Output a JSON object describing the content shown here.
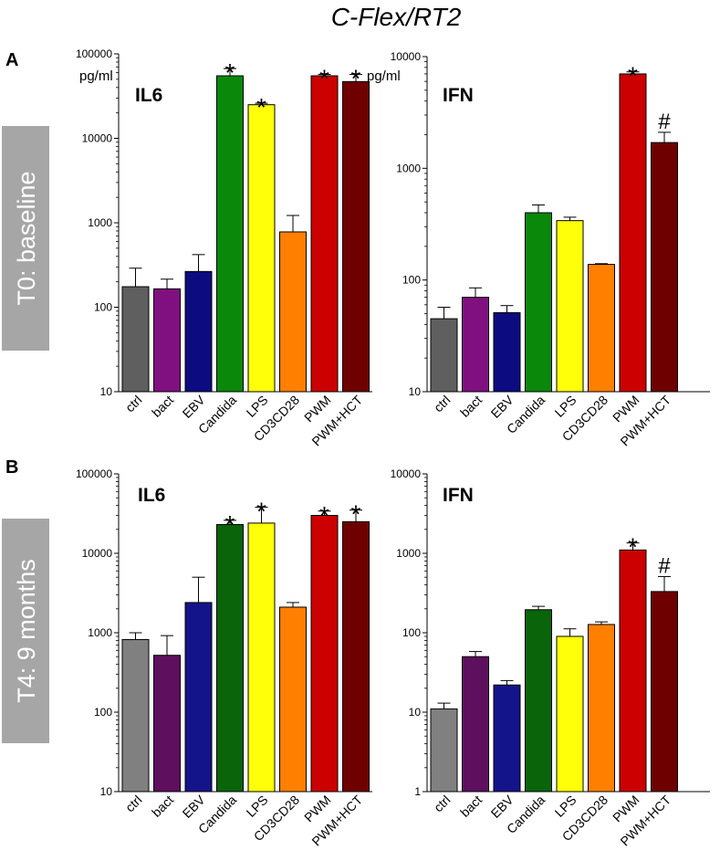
{
  "figure_title": "C-Flex/RT2",
  "panels": [
    {
      "letter": "A",
      "row_label": "T0: baseline"
    },
    {
      "letter": "B",
      "row_label": "T4: 9 months"
    }
  ],
  "chart_data": [
    {
      "type": "bar",
      "panel": "A",
      "title": "IL6",
      "ylabel": "pg/ml",
      "yscale": "log",
      "ylim": [
        10,
        100000
      ],
      "yticks": [
        "10",
        "100",
        "1000",
        "10000",
        "100000"
      ],
      "categories": [
        "ctrl",
        "bact",
        "EBV",
        "Candida",
        "LPS",
        "CD3CD28",
        "PWM",
        "PWM+HCT"
      ],
      "values": [
        175,
        165,
        265,
        55000,
        25000,
        780,
        55000,
        47000
      ],
      "errors": [
        290,
        215,
        420,
        67000,
        26000,
        1220,
        57000,
        57000
      ],
      "annotations": [
        "",
        "",
        "",
        "*",
        "*",
        "",
        "*",
        "*"
      ],
      "colors": [
        "#5f5f5f",
        "#801080",
        "#0c0c80",
        "#0a880a",
        "#ffff0a",
        "#ff7f00",
        "#cc0000",
        "#6e0000"
      ]
    },
    {
      "type": "bar",
      "panel": "A",
      "title": "IFN",
      "ylabel": "pg/ml",
      "yscale": "log",
      "ylim": [
        10,
        10000
      ],
      "yticks": [
        "10",
        "100",
        "1000",
        "10000"
      ],
      "categories": [
        "ctrl",
        "bact",
        "EBV",
        "Candida",
        "LPS",
        "CD3CD28",
        "PWM",
        "PWM+HCT"
      ],
      "values": [
        45,
        70,
        51,
        400,
        340,
        138,
        7000,
        1700
      ],
      "errors": [
        57,
        85,
        59,
        470,
        365,
        140,
        7300,
        2100
      ],
      "annotations": [
        "",
        "",
        "",
        "",
        "",
        "",
        "*",
        "#"
      ],
      "colors": [
        "#5f5f5f",
        "#801080",
        "#0c0c80",
        "#0a880a",
        "#ffff0a",
        "#ff7f00",
        "#cc0000",
        "#6e0000"
      ]
    },
    {
      "type": "bar",
      "panel": "B",
      "title": "IL6",
      "ylabel": "",
      "yscale": "log",
      "ylim": [
        10,
        100000
      ],
      "yticks": [
        "10",
        "100",
        "1000",
        "10000",
        "100000"
      ],
      "categories": [
        "ctrl",
        "bact",
        "EBV",
        "Candida",
        "LPS",
        "CD3CD28",
        "PWM",
        "PWM+HCT"
      ],
      "values": [
        820,
        520,
        2400,
        23000,
        24000,
        2100,
        30000,
        25000
      ],
      "errors": [
        1000,
        920,
        5000,
        26000,
        38000,
        2400,
        34000,
        35000
      ],
      "annotations": [
        "",
        "",
        "",
        "*",
        "*",
        "",
        "*",
        "*"
      ],
      "colors": [
        "#808080",
        "#5e0f5e",
        "#14148a",
        "#0a640a",
        "#ffff0a",
        "#ff7f00",
        "#cc0000",
        "#6e0000"
      ]
    },
    {
      "type": "bar",
      "panel": "B",
      "title": "IFN",
      "ylabel": "",
      "yscale": "log",
      "ylim": [
        1,
        10000
      ],
      "yticks": [
        "1",
        "10",
        "100",
        "1000",
        "10000"
      ],
      "categories": [
        "ctrl",
        "bact",
        "EBV",
        "Candida",
        "LPS",
        "CD3CD28",
        "PWM",
        "PWM+HCT"
      ],
      "values": [
        11,
        50,
        22,
        195,
        90,
        127,
        1100,
        330
      ],
      "errors": [
        13,
        58,
        25,
        215,
        112,
        137,
        1350,
        510
      ],
      "annotations": [
        "",
        "",
        "",
        "",
        "",
        "",
        "*",
        "#"
      ],
      "colors": [
        "#808080",
        "#5e0f5e",
        "#14148a",
        "#0a640a",
        "#ffff0a",
        "#ff7f00",
        "#cc0000",
        "#6e0000"
      ]
    }
  ]
}
